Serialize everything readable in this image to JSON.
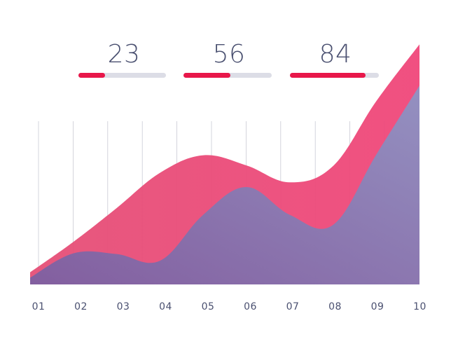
{
  "kpis": [
    {
      "value": "23",
      "progress": 0.3
    },
    {
      "value": "56",
      "progress": 0.53
    },
    {
      "value": "84",
      "progress": 0.85
    }
  ],
  "colors": {
    "accent": "#e8174a",
    "track": "#dcdde6",
    "text": "#4a5070",
    "series_front": "#8a8fc0",
    "series_back": "#e84a74",
    "gridline": "#c9cad4"
  },
  "chart_data": {
    "type": "area",
    "x": [
      "01",
      "02",
      "03",
      "04",
      "05",
      "06",
      "07",
      "08",
      "09",
      "10"
    ],
    "series": [
      {
        "values": [
          18,
          63,
          113,
          165,
          191,
          176,
          151,
          175,
          271,
          355
        ]
      },
      {
        "values": [
          10,
          46,
          45,
          35,
          103,
          144,
          103,
          88,
          192,
          294
        ]
      }
    ],
    "ylim": [
      0,
      400
    ],
    "grid": "vertical"
  }
}
